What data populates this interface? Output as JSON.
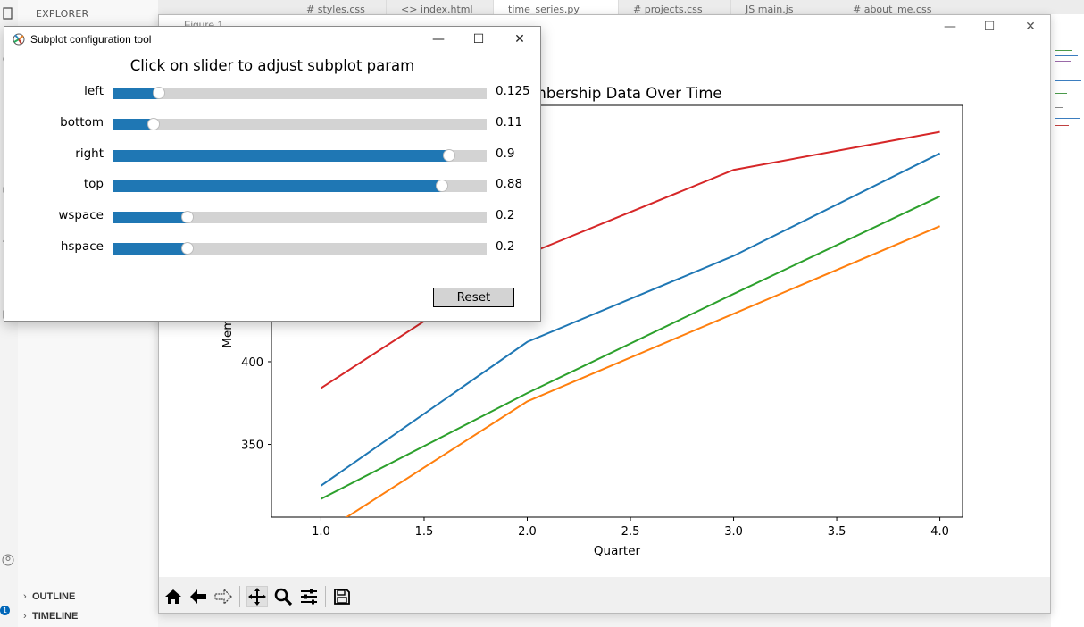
{
  "vscode": {
    "explorer_label": "EXPLORER",
    "outline_label": "OUTLINE",
    "timeline_label": "TIMELINE",
    "badge_count": "1",
    "tabs": [
      "# styles.css",
      "<> index.html",
      "time_series.py",
      "# projects.css",
      "JS main.js",
      "# about_me.css"
    ]
  },
  "figure_window": {
    "title": "Figure 1",
    "minimize": "—",
    "maximize": "☐",
    "close": "✕"
  },
  "toolbar": {
    "buttons": [
      "home-icon",
      "back-arrow-icon",
      "forward-arrow-icon",
      "pan-icon",
      "zoom-icon",
      "configure-subplots-icon",
      "save-icon"
    ],
    "active": "pan-icon"
  },
  "chart_data": {
    "type": "line",
    "title": "Membership Data Over Time",
    "xlabel": "Quarter",
    "ylabel": "Membership",
    "x": [
      1,
      2,
      3,
      4
    ],
    "xlim": [
      0.76,
      4.11
    ],
    "ylim": [
      306,
      555
    ],
    "xticks": [
      "1.0",
      "1.5",
      "2.0",
      "2.5",
      "3.0",
      "3.5",
      "4.0"
    ],
    "yticks": [
      "350",
      "400"
    ],
    "series": [
      {
        "values": [
          325,
          412,
          464,
          526
        ],
        "color": "#1f77b4"
      },
      {
        "values": [
          296,
          376,
          429,
          482
        ],
        "color": "#ff7f0e"
      },
      {
        "values": [
          317,
          381,
          441,
          500
        ],
        "color": "#2ca02c"
      },
      {
        "values": [
          384,
          465,
          516,
          539
        ],
        "color": "#d62728"
      }
    ]
  },
  "dialog": {
    "title": "Subplot configuration tool",
    "heading": "Click on slider to adjust subplot param",
    "minimize": "—",
    "maximize": "☐",
    "close": "✕",
    "reset_label": "Reset",
    "sliders": [
      {
        "label": "left",
        "value": "0.125",
        "fraction": 0.125
      },
      {
        "label": "bottom",
        "value": "0.11",
        "fraction": 0.11
      },
      {
        "label": "right",
        "value": "0.9",
        "fraction": 0.9
      },
      {
        "label": "top",
        "value": "0.88",
        "fraction": 0.88
      },
      {
        "label": "wspace",
        "value": "0.2",
        "fraction": 0.2
      },
      {
        "label": "hspace",
        "value": "0.2",
        "fraction": 0.2
      }
    ]
  }
}
